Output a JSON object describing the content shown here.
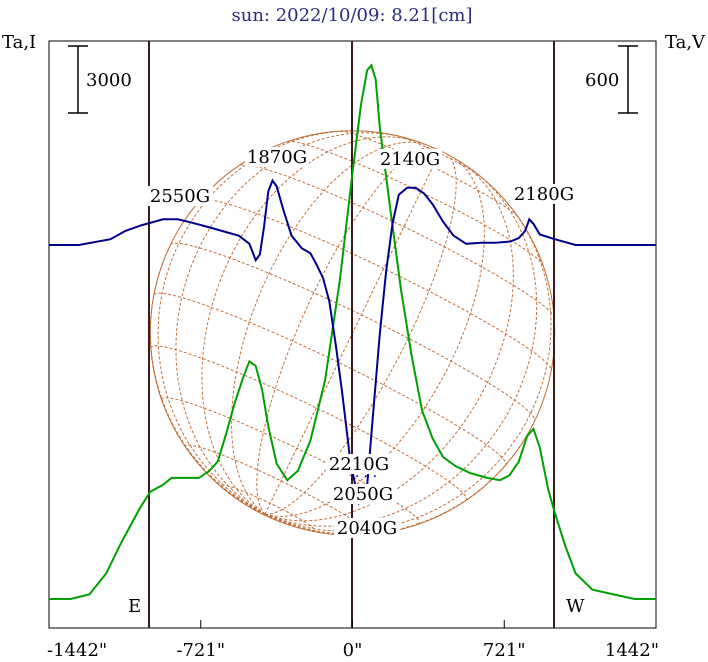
{
  "chart_data": {
    "type": "line",
    "title": "sun: 2022/10/09: 8.21[cm]",
    "ylabel_left": "Ta,I",
    "ylabel_right": "Ta,V",
    "scale_left": "3000",
    "scale_right": "600",
    "xlim": [
      -1442,
      1442
    ],
    "x_ticks": [
      {
        "value": -1442,
        "label": "-1442\""
      },
      {
        "value": -721,
        "label": "-721\""
      },
      {
        "value": 0,
        "label": "0\""
      },
      {
        "value": 721,
        "label": "721\""
      },
      {
        "value": 1442,
        "label": "1442\""
      }
    ],
    "limb_marks": [
      -961,
      961
    ],
    "limb_labels": {
      "east": "E",
      "west": "W"
    },
    "series": [
      {
        "key": "stokes_i",
        "color": "#00a000",
        "points": [
          [
            -1442,
            0.03
          ],
          [
            -1340,
            0.03
          ],
          [
            -1250,
            0.05
          ],
          [
            -1170,
            0.14
          ],
          [
            -1100,
            0.27
          ],
          [
            -1010,
            0.42
          ],
          [
            -961,
            0.49
          ],
          [
            -900,
            0.52
          ],
          [
            -860,
            0.55
          ],
          [
            -800,
            0.55
          ],
          [
            -730,
            0.55
          ],
          [
            -680,
            0.58
          ],
          [
            -640,
            0.62
          ],
          [
            -600,
            0.74
          ],
          [
            -560,
            0.87
          ],
          [
            -520,
            0.98
          ],
          [
            -490,
            1.05
          ],
          [
            -460,
            1.03
          ],
          [
            -430,
            0.93
          ],
          [
            -400,
            0.77
          ],
          [
            -360,
            0.61
          ],
          [
            -310,
            0.54
          ],
          [
            -260,
            0.58
          ],
          [
            -200,
            0.71
          ],
          [
            -130,
            0.97
          ],
          [
            -60,
            1.4
          ],
          [
            0,
            1.86
          ],
          [
            40,
            2.15
          ],
          [
            70,
            2.3
          ],
          [
            90,
            2.32
          ],
          [
            110,
            2.26
          ],
          [
            130,
            2.05
          ],
          [
            180,
            1.7
          ],
          [
            230,
            1.36
          ],
          [
            280,
            1.08
          ],
          [
            330,
            0.84
          ],
          [
            380,
            0.72
          ],
          [
            430,
            0.64
          ],
          [
            490,
            0.6
          ],
          [
            560,
            0.57
          ],
          [
            640,
            0.55
          ],
          [
            700,
            0.54
          ],
          [
            745,
            0.56
          ],
          [
            790,
            0.62
          ],
          [
            830,
            0.73
          ],
          [
            860,
            0.76
          ],
          [
            890,
            0.68
          ],
          [
            930,
            0.5
          ],
          [
            961,
            0.4
          ],
          [
            1010,
            0.26
          ],
          [
            1060,
            0.14
          ],
          [
            1140,
            0.07
          ],
          [
            1240,
            0.05
          ],
          [
            1340,
            0.03
          ],
          [
            1442,
            0.03
          ]
        ]
      },
      {
        "key": "stokes_v",
        "color": "#00008c",
        "points": [
          [
            -1442,
            0
          ],
          [
            -1300,
            0
          ],
          [
            -1150,
            0.05
          ],
          [
            -1080,
            0.12
          ],
          [
            -1000,
            0.17
          ],
          [
            -900,
            0.22
          ],
          [
            -830,
            0.22
          ],
          [
            -760,
            0.19
          ],
          [
            -680,
            0.15
          ],
          [
            -600,
            0.11
          ],
          [
            -540,
            0.08
          ],
          [
            -490,
            0.01
          ],
          [
            -460,
            -0.13
          ],
          [
            -440,
            -0.08
          ],
          [
            -420,
            0.16
          ],
          [
            -400,
            0.46
          ],
          [
            -380,
            0.55
          ],
          [
            -360,
            0.5
          ],
          [
            -330,
            0.31
          ],
          [
            -290,
            0.08
          ],
          [
            -240,
            -0.03
          ],
          [
            -200,
            -0.07
          ],
          [
            -170,
            -0.17
          ],
          [
            -140,
            -0.28
          ],
          [
            -110,
            -0.48
          ],
          [
            -80,
            -0.85
          ],
          [
            -50,
            -1.25
          ],
          [
            -10,
            -1.85
          ],
          [
            30,
            -2.2
          ],
          [
            70,
            -2.05
          ],
          [
            100,
            -1.4
          ],
          [
            130,
            -0.75
          ],
          [
            160,
            -0.22
          ],
          [
            190,
            0.18
          ],
          [
            220,
            0.43
          ],
          [
            260,
            0.49
          ],
          [
            300,
            0.49
          ],
          [
            340,
            0.44
          ],
          [
            380,
            0.35
          ],
          [
            430,
            0.2
          ],
          [
            480,
            0.08
          ],
          [
            540,
            0.01
          ],
          [
            610,
            0.02
          ],
          [
            680,
            0.02
          ],
          [
            750,
            0.03
          ],
          [
            790,
            0.06
          ],
          [
            820,
            0.12
          ],
          [
            840,
            0.22
          ],
          [
            860,
            0.18
          ],
          [
            890,
            0.09
          ],
          [
            961,
            0.05
          ],
          [
            1060,
            0
          ],
          [
            1200,
            0
          ],
          [
            1442,
            0
          ]
        ]
      }
    ],
    "annotations": [
      "2550G",
      "1870G",
      "2140G",
      "2180G",
      "2210G",
      "2050G",
      "2040G"
    ]
  }
}
